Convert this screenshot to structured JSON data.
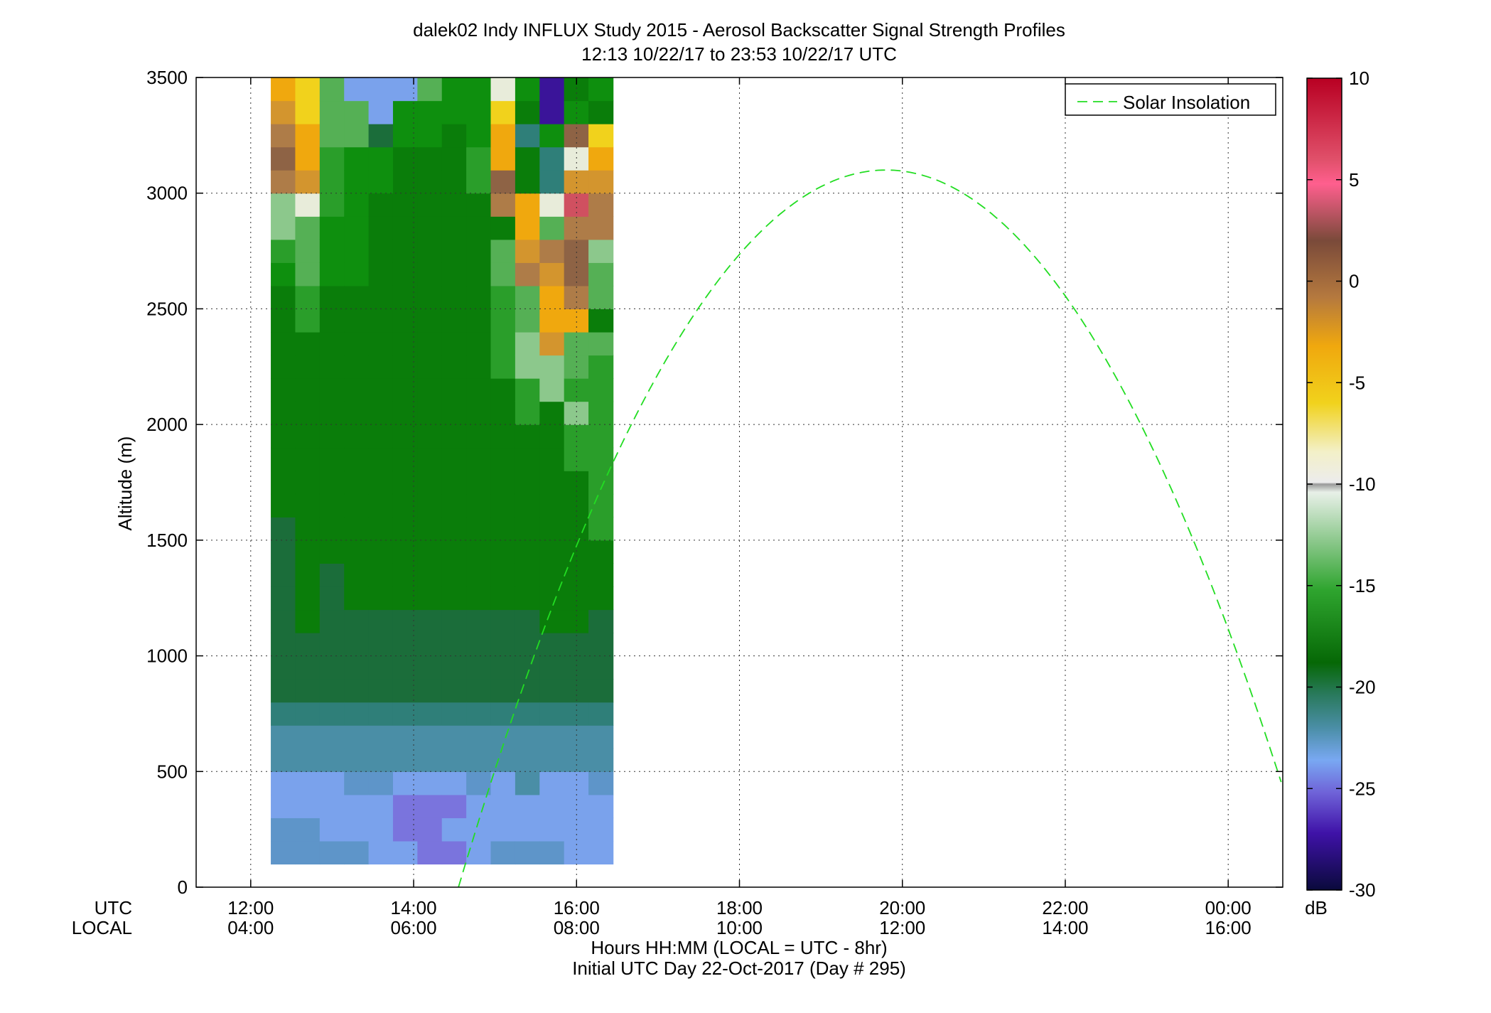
{
  "chart_data": {
    "type": "heatmap",
    "title": "dalek02 Indy INFLUX Study 2015 - Aerosol Backscatter Signal Strength Profiles",
    "subtitle": "12:13 10/22/17 to 23:53 10/22/17  UTC",
    "ylabel": "Altitude (m)",
    "xlabel": "Hours HH:MM  (LOCAL = UTC - 8hr)",
    "xlabel2": "Initial UTC Day 22-Oct-2017 (Day # 295)",
    "x_row_labels": [
      "UTC",
      "LOCAL"
    ],
    "xlim_hours": [
      11.33,
      24.67
    ],
    "ylim": [
      0,
      3500
    ],
    "grid": true,
    "x_ticks": [
      {
        "h": 12,
        "utc": "12:00",
        "local": "04:00"
      },
      {
        "h": 14,
        "utc": "14:00",
        "local": "06:00"
      },
      {
        "h": 16,
        "utc": "16:00",
        "local": "08:00"
      },
      {
        "h": 18,
        "utc": "18:00",
        "local": "10:00"
      },
      {
        "h": 20,
        "utc": "20:00",
        "local": "12:00"
      },
      {
        "h": 22,
        "utc": "22:00",
        "local": "14:00"
      },
      {
        "h": 24,
        "utc": "00:00",
        "local": "16:00"
      }
    ],
    "y_ticks": [
      0,
      500,
      1000,
      1500,
      2000,
      2500,
      3000,
      3500
    ],
    "legend": {
      "label": "Solar Insolation",
      "position": "top-right",
      "color": "#22dd22"
    },
    "colorbar": {
      "unit": "dB",
      "range": [
        -30,
        10
      ],
      "ticks": [
        10,
        5,
        0,
        -5,
        -10,
        -15,
        -20,
        -25,
        -30
      ]
    },
    "colors": {
      "D": "#1a2d7a",
      "P": "#3a1499",
      "V": "#5a3fcc",
      "M": "#7a74dd",
      "L": "#7aa2ec",
      "C": "#5e95c9",
      "S": "#4a8ea6",
      "T": "#2f7f79",
      "F": "#1b6d3a",
      "G": "#0a7d0a",
      "g": "#0e8f0e",
      "N": "#2a9e2a",
      "m": "#55b055",
      "l": "#8cc88c",
      "W": "#e8ecda",
      "Y": "#f6ea9c",
      "y": "#f1d21c",
      "O": "#f0a80e",
      "o": "#d3952e",
      "B": "#ae7c48",
      "b": "#8e6345",
      "R": "#d05060",
      "K": "#ff3a7a",
      "Q": "#a8a8a8"
    },
    "solar_insolation_peak": {
      "hour": 19.8,
      "altitude": 3100
    },
    "series_description": "Each column is a profile; cells are 100 m tall starting at 100 m, colored by dB class codes",
    "profiles": [
      {
        "h": 12.4,
        "bins": "CCLLSSTFFFFFFFFGGGGGGGGGGgNllBbBoOOyy"
      },
      {
        "h": 12.7,
        "bins": "CCLLSSTFFFGGGGGGGGGGGGGNNmmmWoOOyyWmPP"
      },
      {
        "h": 13.0,
        "bins": "CLLLSSTFFFFFFGGGGGGGGGGGGgggNNNmmmgPP"
      },
      {
        "h": 13.3,
        "bins": "CLLCSSTFFFFGGGGGGGGGGGGGGggggggmmLPP"
      },
      {
        "h": 13.6,
        "bins": "LLLCSSTFFFFGGGGGGGGGGGGGGGGGGggFLLMPP"
      },
      {
        "h": 13.9,
        "bins": "LMMLSSTFFFFGGGGGGGGGGGGGGGGGGGGggLSMPP"
      },
      {
        "h": 14.2,
        "bins": "MMMLSSTFFFFGGGGGGGGGGGGGGGGGGGGggmTgPP"
      },
      {
        "h": 14.5,
        "bins": "MLMLSSTFFFFGGGGGGGGGGGGGGGGGGGGGgggGgPP"
      },
      {
        "h": 14.8,
        "bins": "LLLCSSTFFFFGGGGGGGGGGGGGGGGGGNNgggNmWyO"
      },
      {
        "h": 15.1,
        "bins": "CLLLSSTFFFFGGGGGGGGGGNNNNmmGBbOOyWGgLPP"
      },
      {
        "h": 15.4,
        "bins": "CLLSSSTFFFFGGGGGGGGNNllmmBoOOGGTGgGMPP"
      },
      {
        "h": 15.7,
        "bins": "CLLLSSTFFFGGGGGGGGGGlloOOoBmWTTgPP"
      },
      {
        "h": 16.0,
        "bins": "LLLLSSTFFFGGGGGGGNNlNmmOBbbBRoWbgGGPP"
      },
      {
        "h": 16.3,
        "bins": "LLLCSSTFFFFGGGNNNNNNNNmGmmlBBoOyGgMLPP"
      }
    ]
  }
}
